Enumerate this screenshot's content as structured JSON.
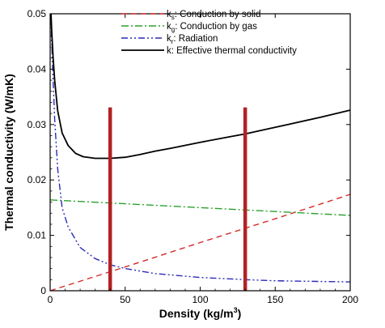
{
  "chart_data": {
    "type": "line",
    "xlabel": "Density (kg/m",
    "xlabel_sup": "3",
    "xlabel_end": ")",
    "ylabel": "Thermal conductivity (W/mK)",
    "xlim": [
      0,
      200
    ],
    "ylim": [
      0,
      0.05
    ],
    "xticks": [
      0,
      50,
      100,
      150,
      200
    ],
    "xtick_labels": [
      "0",
      "50",
      "100",
      "150",
      "200"
    ],
    "yticks": [
      0,
      0.01,
      0.02,
      0.03,
      0.04,
      0.05
    ],
    "ytick_labels": [
      "0",
      "0.01",
      "0.02",
      "0.03",
      "0.04",
      "0.05"
    ],
    "grid": false,
    "legend_position": "top-center",
    "series": [
      {
        "name": "Conduction by solid",
        "symbol": "k",
        "subscript": "s",
        "color": "#d62728",
        "dash": "7,5",
        "x": [
          0,
          50,
          100,
          150,
          200
        ],
        "y": [
          0,
          0.0043,
          0.0087,
          0.013,
          0.0174
        ]
      },
      {
        "name": "Conduction by gas",
        "symbol": "k",
        "subscript": "g",
        "color": "#2ca02c",
        "dash": "9,3,2,3",
        "x": [
          0,
          50,
          100,
          150,
          200
        ],
        "y": [
          0.0164,
          0.0157,
          0.015,
          0.0143,
          0.0136
        ]
      },
      {
        "name": "Radiation",
        "symbol": "k",
        "subscript": "r",
        "color": "#2b2bb8",
        "dash": "8,3,2,3,2,3",
        "x": [
          0.5,
          1,
          2,
          3,
          5,
          8,
          12,
          20,
          30,
          40,
          50,
          70,
          100,
          130,
          150,
          200
        ],
        "y": [
          0.05,
          0.045,
          0.038,
          0.031,
          0.022,
          0.015,
          0.0115,
          0.0078,
          0.0058,
          0.0047,
          0.004,
          0.0031,
          0.0024,
          0.002,
          0.0018,
          0.0016
        ]
      },
      {
        "name": "Effective thermal conductivity",
        "symbol": "k",
        "subscript": "",
        "color": "#000000",
        "dash": "",
        "x": [
          0.6,
          1,
          2,
          3,
          5,
          8,
          12,
          17,
          22,
          30,
          40,
          50,
          60,
          70,
          80,
          100,
          120,
          130,
          140,
          160,
          180,
          200
        ],
        "y": [
          0.05,
          0.047,
          0.042,
          0.038,
          0.0325,
          0.0285,
          0.0262,
          0.0248,
          0.0242,
          0.0239,
          0.0239,
          0.0241,
          0.0246,
          0.0252,
          0.0257,
          0.0268,
          0.0278,
          0.0283,
          0.0289,
          0.0301,
          0.0313,
          0.0326
        ]
      }
    ],
    "markers": [
      {
        "x": 40,
        "y_top": 0.0331,
        "color": "#b22222"
      },
      {
        "x": 130,
        "y_top": 0.0331,
        "color": "#b22222"
      }
    ]
  }
}
